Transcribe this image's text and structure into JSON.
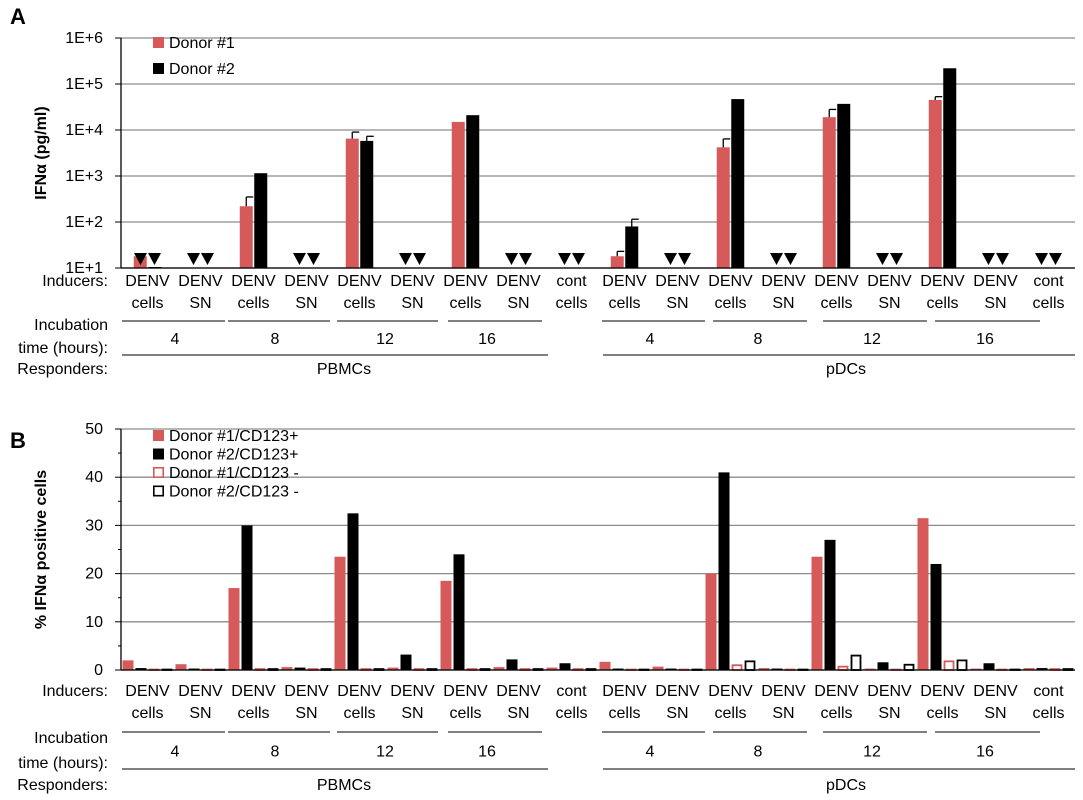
{
  "chart_data": [
    {
      "panel_label": "A",
      "type": "bar",
      "scale": "log",
      "ylabel": "IFNα (pg/ml)",
      "yticks": [
        "1E+1",
        "1E+2",
        "1E+3",
        "1E+4",
        "1E+5",
        "1E+6"
      ],
      "ylim": [
        10,
        1000000
      ],
      "grid": true,
      "legend_position": "top-left",
      "series": [
        {
          "name": "Donor #1",
          "color": "#d75a5a",
          "fill": "solid",
          "values": [
            18,
            null,
            220,
            null,
            6500,
            null,
            15000,
            null,
            null,
            18,
            null,
            4200,
            null,
            19000,
            null,
            45000,
            null,
            null
          ],
          "errors": [
            0,
            0,
            130,
            0,
            2500,
            0,
            0,
            0,
            0,
            5,
            0,
            2200,
            0,
            9000,
            0,
            8000,
            0,
            0
          ]
        },
        {
          "name": "Donor #2",
          "color": "#000000",
          "fill": "solid",
          "values": [
            10.5,
            null,
            1150,
            null,
            5800,
            null,
            21000,
            null,
            null,
            80,
            null,
            47000,
            null,
            37000,
            null,
            220000,
            null,
            null
          ],
          "errors": [
            0,
            0,
            0,
            0,
            1500,
            0,
            0,
            0,
            0,
            35,
            0,
            0,
            0,
            0,
            0,
            0,
            0,
            0
          ]
        }
      ],
      "below_detection": [
        [
          true,
          true
        ],
        [
          true,
          true
        ],
        [
          false,
          false
        ],
        [
          true,
          true
        ],
        [
          false,
          false
        ],
        [
          true,
          true
        ],
        [
          false,
          false
        ],
        [
          true,
          true
        ],
        [
          true,
          true
        ],
        [
          false,
          false
        ],
        [
          true,
          true
        ],
        [
          false,
          false
        ],
        [
          true,
          true
        ],
        [
          false,
          false
        ],
        [
          true,
          true
        ],
        [
          false,
          false
        ],
        [
          true,
          true
        ],
        [
          true,
          true
        ]
      ],
      "categories_top": [
        "DENV",
        "DENV",
        "DENV",
        "DENV",
        "DENV",
        "DENV",
        "DENV",
        "DENV",
        "cont",
        "DENV",
        "DENV",
        "DENV",
        "DENV",
        "DENV",
        "DENV",
        "DENV",
        "DENV",
        "cont"
      ],
      "categories_bottom": [
        "cells",
        "SN",
        "cells",
        "SN",
        "cells",
        "SN",
        "cells",
        "SN",
        "cells",
        "cells",
        "SN",
        "cells",
        "SN",
        "cells",
        "SN",
        "cells",
        "SN",
        "cells"
      ],
      "row_labels": {
        "inducers": "Inducers:",
        "incubation_1": "Incubation",
        "incubation_2": "time (hours):",
        "responders": "Responders:"
      },
      "incubation_groups": [
        "4",
        "8",
        "12",
        "16",
        "4",
        "8",
        "12",
        "16"
      ],
      "responders": [
        "PBMCs",
        "pDCs"
      ]
    },
    {
      "panel_label": "B",
      "type": "bar",
      "scale": "linear",
      "ylabel": "% IFNα positive cells",
      "yticks": [
        "0",
        "10",
        "20",
        "30",
        "40",
        "50"
      ],
      "ylim": [
        0,
        50
      ],
      "grid": true,
      "legend_position": "top-left",
      "series": [
        {
          "name": "Donor #1/CD123+",
          "color": "#d75a5a",
          "fill": "solid",
          "values": [
            2.0,
            1.2,
            17.0,
            0.6,
            23.5,
            0.5,
            18.5,
            0.6,
            0.5,
            1.7,
            0.7,
            20.0,
            0.4,
            23.5,
            0.3,
            31.5,
            0.3,
            0.4
          ]
        },
        {
          "name": "Donor #2/CD123+",
          "color": "#000000",
          "fill": "solid",
          "values": [
            0.4,
            0.3,
            30.0,
            0.5,
            32.5,
            3.2,
            24.0,
            2.2,
            1.4,
            0.3,
            0.3,
            41.0,
            0.3,
            27.0,
            1.6,
            22.0,
            1.4,
            0.4
          ]
        },
        {
          "name": "Donor #1/CD123 -",
          "color": "#d75a5a",
          "fill": "open",
          "values": [
            0.3,
            0.3,
            0.4,
            0.4,
            0.4,
            0.4,
            0.4,
            0.4,
            0.4,
            0.3,
            0.3,
            1.2,
            0.3,
            0.9,
            0.3,
            2.0,
            0.3,
            0.4
          ]
        },
        {
          "name": "Donor #2/CD123 -",
          "color": "#000000",
          "fill": "open",
          "values": [
            0.3,
            0.3,
            0.4,
            0.4,
            0.4,
            0.4,
            0.4,
            0.4,
            0.4,
            0.3,
            0.3,
            2.0,
            0.3,
            3.2,
            1.3,
            2.2,
            0.3,
            0.4
          ]
        }
      ],
      "categories_top": [
        "DENV",
        "DENV",
        "DENV",
        "DENV",
        "DENV",
        "DENV",
        "DENV",
        "DENV",
        "cont",
        "DENV",
        "DENV",
        "DENV",
        "DENV",
        "DENV",
        "DENV",
        "DENV",
        "DENV",
        "cont"
      ],
      "categories_bottom": [
        "cells",
        "SN",
        "cells",
        "SN",
        "cells",
        "SN",
        "cells",
        "SN",
        "cells",
        "cells",
        "SN",
        "cells",
        "SN",
        "cells",
        "SN",
        "cells",
        "SN",
        "cells"
      ],
      "row_labels": {
        "inducers": "Inducers:",
        "incubation_1": "Incubation",
        "incubation_2": "time (hours):",
        "responders": "Responders:"
      },
      "incubation_groups": [
        "4",
        "8",
        "12",
        "16",
        "4",
        "8",
        "12",
        "16"
      ],
      "responders": [
        "PBMCs",
        "pDCs"
      ]
    }
  ]
}
